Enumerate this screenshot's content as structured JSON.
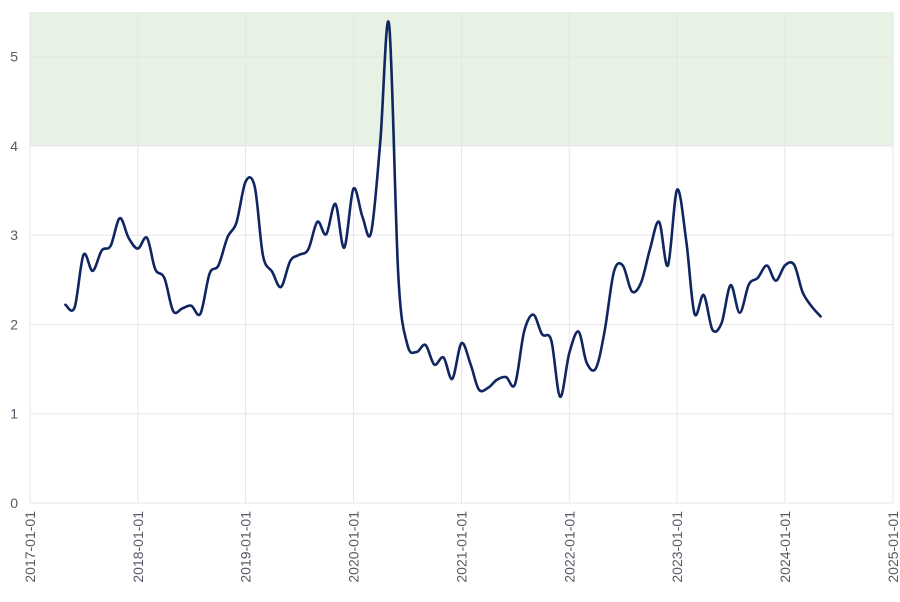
{
  "chart_data": {
    "type": "line",
    "title": "",
    "xlabel": "",
    "ylabel": "",
    "x_axis": {
      "type": "date",
      "range": [
        "2017-01-01",
        "2025-01-01"
      ],
      "ticks": [
        "2017-01-01",
        "2018-01-01",
        "2019-01-01",
        "2020-01-01",
        "2021-01-01",
        "2022-01-01",
        "2023-01-01",
        "2024-01-01",
        "2025-01-01"
      ]
    },
    "y_axis": {
      "range": [
        0,
        5.5
      ],
      "ticks": [
        0,
        1,
        2,
        3,
        4,
        5
      ]
    },
    "grid": true,
    "legend": "none",
    "shaded_band": {
      "y_from": 4,
      "y_to": 5.5,
      "color": "#e7f1e4"
    },
    "series": [
      {
        "color": "#0f2660",
        "points": [
          [
            "2017-05-01",
            2.22
          ],
          [
            "2017-06-01",
            2.19
          ],
          [
            "2017-07-01",
            2.78
          ],
          [
            "2017-08-01",
            2.6
          ],
          [
            "2017-09-01",
            2.83
          ],
          [
            "2017-10-01",
            2.88
          ],
          [
            "2017-11-01",
            3.19
          ],
          [
            "2017-12-01",
            2.97
          ],
          [
            "2018-01-01",
            2.85
          ],
          [
            "2018-02-01",
            2.97
          ],
          [
            "2018-03-01",
            2.62
          ],
          [
            "2018-04-01",
            2.52
          ],
          [
            "2018-05-01",
            2.15
          ],
          [
            "2018-06-01",
            2.18
          ],
          [
            "2018-07-01",
            2.21
          ],
          [
            "2018-08-01",
            2.12
          ],
          [
            "2018-09-01",
            2.57
          ],
          [
            "2018-10-01",
            2.66
          ],
          [
            "2018-11-01",
            2.98
          ],
          [
            "2018-12-01",
            3.14
          ],
          [
            "2019-01-01",
            3.6
          ],
          [
            "2019-02-01",
            3.54
          ],
          [
            "2019-03-01",
            2.77
          ],
          [
            "2019-04-01",
            2.59
          ],
          [
            "2019-05-01",
            2.42
          ],
          [
            "2019-06-01",
            2.71
          ],
          [
            "2019-07-01",
            2.78
          ],
          [
            "2019-08-01",
            2.84
          ],
          [
            "2019-09-01",
            3.15
          ],
          [
            "2019-10-01",
            3.01
          ],
          [
            "2019-11-01",
            3.35
          ],
          [
            "2019-12-01",
            2.86
          ],
          [
            "2020-01-01",
            3.52
          ],
          [
            "2020-02-01",
            3.2
          ],
          [
            "2020-03-01",
            3.03
          ],
          [
            "2020-04-01",
            4.05
          ],
          [
            "2020-05-01",
            5.36
          ],
          [
            "2020-06-01",
            2.55
          ],
          [
            "2020-07-01",
            1.78
          ],
          [
            "2020-08-01",
            1.69
          ],
          [
            "2020-09-01",
            1.77
          ],
          [
            "2020-10-01",
            1.55
          ],
          [
            "2020-11-01",
            1.63
          ],
          [
            "2020-12-01",
            1.39
          ],
          [
            "2021-01-01",
            1.79
          ],
          [
            "2021-02-01",
            1.55
          ],
          [
            "2021-03-01",
            1.27
          ],
          [
            "2021-04-01",
            1.29
          ],
          [
            "2021-05-01",
            1.38
          ],
          [
            "2021-06-01",
            1.41
          ],
          [
            "2021-07-01",
            1.33
          ],
          [
            "2021-08-01",
            1.92
          ],
          [
            "2021-09-01",
            2.11
          ],
          [
            "2021-10-01",
            1.89
          ],
          [
            "2021-11-01",
            1.82
          ],
          [
            "2021-12-01",
            1.19
          ],
          [
            "2022-01-01",
            1.68
          ],
          [
            "2022-02-01",
            1.92
          ],
          [
            "2022-03-01",
            1.57
          ],
          [
            "2022-04-01",
            1.51
          ],
          [
            "2022-05-01",
            1.93
          ],
          [
            "2022-06-01",
            2.59
          ],
          [
            "2022-07-01",
            2.66
          ],
          [
            "2022-08-01",
            2.37
          ],
          [
            "2022-09-01",
            2.47
          ],
          [
            "2022-10-01",
            2.84
          ],
          [
            "2022-11-01",
            3.15
          ],
          [
            "2022-12-01",
            2.66
          ],
          [
            "2023-01-01",
            3.51
          ],
          [
            "2023-02-01",
            2.93
          ],
          [
            "2023-03-01",
            2.12
          ],
          [
            "2023-04-01",
            2.33
          ],
          [
            "2023-05-01",
            1.94
          ],
          [
            "2023-06-01",
            2.02
          ],
          [
            "2023-07-01",
            2.44
          ],
          [
            "2023-08-01",
            2.13
          ],
          [
            "2023-09-01",
            2.45
          ],
          [
            "2023-10-01",
            2.52
          ],
          [
            "2023-11-01",
            2.66
          ],
          [
            "2023-12-01",
            2.49
          ],
          [
            "2024-01-01",
            2.66
          ],
          [
            "2024-02-01",
            2.67
          ],
          [
            "2024-03-01",
            2.36
          ],
          [
            "2024-04-01",
            2.2
          ],
          [
            "2024-05-01",
            2.09
          ]
        ]
      }
    ]
  }
}
